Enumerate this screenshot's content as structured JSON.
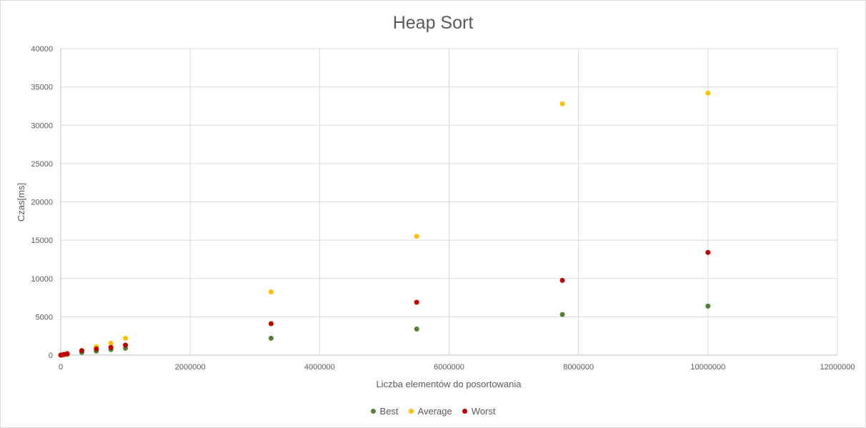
{
  "chart_data": {
    "type": "scatter",
    "title": "Heap Sort",
    "xlabel": "Liczba elementów do posortowania",
    "ylabel": "Czas[ms]",
    "xlim": [
      0,
      12000000
    ],
    "ylim": [
      0,
      40000
    ],
    "xticks": [
      0,
      2000000,
      4000000,
      6000000,
      8000000,
      10000000,
      12000000
    ],
    "yticks": [
      0,
      5000,
      10000,
      15000,
      20000,
      25000,
      30000,
      35000,
      40000
    ],
    "grid": true,
    "legend_position": "bottom",
    "series": [
      {
        "name": "Best",
        "color": "#548235",
        "x": [
          1000,
          10000,
          50000,
          100000,
          325000,
          550000,
          775000,
          1000000,
          3250000,
          5500000,
          7750000,
          10000000
        ],
        "y": [
          1,
          10,
          40,
          90,
          350,
          520,
          720,
          900,
          2200,
          3400,
          5300,
          6400
        ]
      },
      {
        "name": "Average",
        "color": "#ffc000",
        "x": [
          1000,
          10000,
          50000,
          100000,
          325000,
          550000,
          775000,
          1000000,
          3250000,
          5500000,
          7750000,
          10000000
        ],
        "y": [
          2,
          20,
          80,
          180,
          600,
          1100,
          1550,
          2200,
          8250,
          15500,
          32800,
          34200
        ]
      },
      {
        "name": "Worst",
        "color": "#c00000",
        "x": [
          1000,
          10000,
          50000,
          100000,
          325000,
          550000,
          775000,
          1000000,
          3250000,
          5500000,
          7750000,
          10000000
        ],
        "y": [
          1,
          15,
          100,
          200,
          580,
          800,
          1000,
          1300,
          4100,
          6900,
          9750,
          13400
        ]
      }
    ]
  }
}
